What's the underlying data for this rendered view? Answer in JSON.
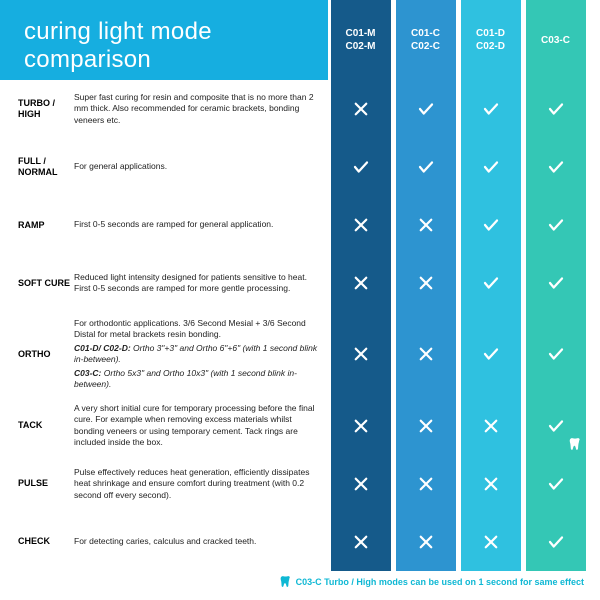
{
  "title": "curing light mode comparison",
  "colors": {
    "header_bg": "#16aee0",
    "col1": "#155a8a",
    "col2": "#2d94d0",
    "col3": "#2fc1e0",
    "col4": "#34c7b5",
    "footer_text": "#0fb8d4",
    "icon_stroke": "#ffffff"
  },
  "columns": [
    {
      "id": "c01m",
      "line1": "C01-M",
      "line2": "C02-M",
      "color_key": "col1"
    },
    {
      "id": "c01c",
      "line1": "C01-C",
      "line2": "C02-C",
      "color_key": "col2"
    },
    {
      "id": "c01d",
      "line1": "C01-D",
      "line2": "C02-D",
      "color_key": "col3"
    },
    {
      "id": "c03c",
      "line1": "C03-C",
      "line2": "",
      "color_key": "col4"
    }
  ],
  "rows": [
    {
      "id": "turbo",
      "label": "TURBO / HIGH",
      "desc": "Super fast curing for resin and composite that is no more than 2 mm thick. Also recommended for ceramic brackets, bonding veneers etc.",
      "cells": [
        "cross",
        "check",
        "check",
        "check"
      ]
    },
    {
      "id": "full",
      "label": "FULL / NORMAL",
      "desc": "For general applications.",
      "cells": [
        "check",
        "check",
        "check",
        "check"
      ]
    },
    {
      "id": "ramp",
      "label": "RAMP",
      "desc": "First 0-5 seconds are ramped for general application.",
      "cells": [
        "cross",
        "cross",
        "check",
        "check"
      ]
    },
    {
      "id": "softcure",
      "label": "SOFT CURE",
      "desc": "Reduced light intensity designed for patients sensitive to heat. First 0-5 seconds are ramped for more gentle processing.",
      "cells": [
        "cross",
        "cross",
        "check",
        "check"
      ]
    },
    {
      "id": "ortho",
      "label": "ORTHO",
      "desc": "For orthodontic applications. 3/6 Second Mesial + 3/6 Second Distal for metal brackets resin bonding.",
      "sub1_head": "C01-D/ C02-D:",
      "sub1_body": " Ortho 3\"+3\" and Ortho 6\"+6\" (with 1 second blink in-between).",
      "sub2_head": "C03-C:",
      "sub2_body": " Ortho 5x3\" and Ortho 10x3\" (with 1 second blink in-between).",
      "cells": [
        "cross",
        "cross",
        "check",
        "check"
      ]
    },
    {
      "id": "tack",
      "label": "TACK",
      "desc": "A very short initial cure for temporary processing before the final cure. For example when removing excess materials whilst bonding veneers or using temporary cement. Tack rings are included inside the box.",
      "cells": [
        "cross",
        "cross",
        "cross",
        "check"
      ],
      "tooth_badge_col": 3
    },
    {
      "id": "pulse",
      "label": "PULSE",
      "desc": "Pulse effectively reduces heat generation, efficiently dissipates heat shrinkage and ensure comfort during treatment (with 0.2 second off every second).",
      "cells": [
        "cross",
        "cross",
        "cross",
        "check"
      ]
    },
    {
      "id": "check",
      "label": "CHECK",
      "desc": "For detecting caries, calculus and cracked teeth.",
      "cells": [
        "cross",
        "cross",
        "cross",
        "check"
      ]
    }
  ],
  "footer_text": "C03-C Turbo / High modes can be used on 1 second for same effect"
}
